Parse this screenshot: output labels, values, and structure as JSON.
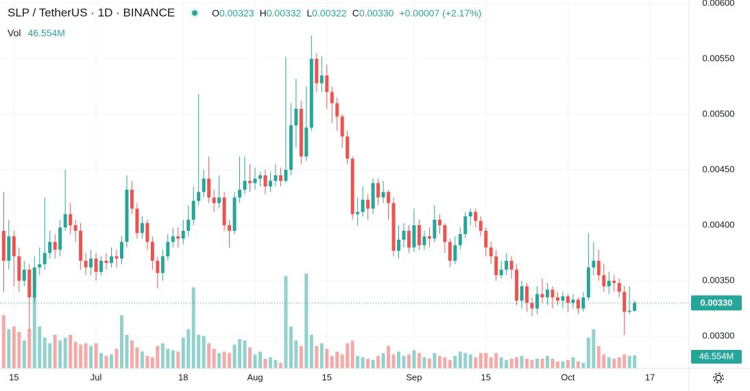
{
  "header": {
    "symbol": "SLP / TetherUS · 1D · BINANCE",
    "ohlc": [
      {
        "label": "O",
        "value": "0.00323"
      },
      {
        "label": "H",
        "value": "0.00332"
      },
      {
        "label": "L",
        "value": "0.00322"
      },
      {
        "label": "C",
        "value": "0.00330"
      }
    ],
    "change": "+0.00007 (+2.17%)",
    "vol_label": "Vol",
    "vol_value": "46.554M"
  },
  "chart_data": {
    "type": "candlestick",
    "up_color": "#26a69a",
    "down_color": "#ef5350",
    "volume_up_color": "rgba(38,166,154,0.5)",
    "volume_down_color": "rgba(239,83,80,0.5)",
    "xlim": [
      -0.72,
      133.6
    ],
    "xticks": [
      {
        "value": 2,
        "label": "15"
      },
      {
        "value": 18,
        "label": "Jul"
      },
      {
        "value": 35,
        "label": "18"
      },
      {
        "value": 49,
        "label": "Aug"
      },
      {
        "value": 63,
        "label": "15"
      },
      {
        "value": 80,
        "label": "Sep"
      },
      {
        "value": 94,
        "label": "15"
      },
      {
        "value": 110,
        "label": "Oct"
      },
      {
        "value": 126,
        "label": "17"
      }
    ],
    "ylim": [
      0.00271,
      0.00603
    ],
    "yticks": [
      {
        "value": 0.003,
        "label": "0.00300"
      },
      {
        "value": 0.0035,
        "label": "0.00350"
      },
      {
        "value": 0.004,
        "label": "0.00400"
      },
      {
        "value": 0.0045,
        "label": "0.00450"
      },
      {
        "value": 0.005,
        "label": "0.00500"
      },
      {
        "value": 0.0055,
        "label": "0.00550"
      },
      {
        "value": 0.006,
        "label": "0.00600"
      }
    ],
    "grid": true,
    "last_price": {
      "value": 0.0033,
      "label": "0.00330"
    },
    "volume_lim": [
      0,
      1318
    ],
    "volume_label": "46.554M",
    "open": [
      0.00395,
      0.00368,
      0.0039,
      0.00372,
      0.0035,
      0.0036,
      0.00335,
      0.00362,
      0.00365,
      0.00375,
      0.00385,
      0.00378,
      0.00398,
      0.0041,
      0.004,
      0.00395,
      0.00368,
      0.00362,
      0.0037,
      0.00358,
      0.00368,
      0.00366,
      0.00372,
      0.0037,
      0.00385,
      0.00432,
      0.00415,
      0.00393,
      0.00402,
      0.00385,
      0.00368,
      0.00357,
      0.00372,
      0.00385,
      0.0039,
      0.00388,
      0.00395,
      0.00405,
      0.00422,
      0.0043,
      0.00442,
      0.00425,
      0.0042,
      0.00425,
      0.004,
      0.00395,
      0.00425,
      0.00432,
      0.0044,
      0.00438,
      0.00442,
      0.00445,
      0.00435,
      0.0044,
      0.00445,
      0.0044,
      0.0045,
      0.0049,
      0.00505,
      0.00462,
      0.00488,
      0.0055,
      0.00528,
      0.00535,
      0.0052,
      0.0051,
      0.00498,
      0.0048,
      0.0046,
      0.0041,
      0.00412,
      0.00423,
      0.00415,
      0.00438,
      0.00425,
      0.0043,
      0.0042,
      0.00377,
      0.00387,
      0.00395,
      0.0038,
      0.004,
      0.00382,
      0.0039,
      0.00388,
      0.00405,
      0.004,
      0.00385,
      0.00368,
      0.00382,
      0.00392,
      0.00408,
      0.00412,
      0.00404,
      0.00395,
      0.0038,
      0.00372,
      0.00355,
      0.0036,
      0.00368,
      0.0036,
      0.00332,
      0.00345,
      0.0033,
      0.00325,
      0.00338,
      0.00335,
      0.00342,
      0.00335,
      0.00332,
      0.00336,
      0.0033,
      0.00333,
      0.00325,
      0.00335,
      0.00362,
      0.00368,
      0.00355,
      0.00345,
      0.0035,
      0.00348,
      0.0034,
      0.00322,
      0.00323
    ],
    "high": [
      0.0043,
      0.00405,
      0.00395,
      0.0038,
      0.00368,
      0.00365,
      0.00372,
      0.0038,
      0.00425,
      0.00395,
      0.00392,
      0.00405,
      0.0045,
      0.0042,
      0.00405,
      0.00402,
      0.00375,
      0.00378,
      0.00375,
      0.00372,
      0.00375,
      0.0038,
      0.00378,
      0.0039,
      0.00445,
      0.0044,
      0.0042,
      0.00408,
      0.00405,
      0.0039,
      0.00372,
      0.00378,
      0.00392,
      0.00398,
      0.00398,
      0.00405,
      0.00418,
      0.00435,
      0.00518,
      0.0045,
      0.00462,
      0.00432,
      0.00445,
      0.0043,
      0.00405,
      0.0043,
      0.00462,
      0.00462,
      0.00455,
      0.00452,
      0.00448,
      0.0045,
      0.00448,
      0.00455,
      0.00452,
      0.00552,
      0.0051,
      0.00532,
      0.00512,
      0.00525,
      0.00571,
      0.00555,
      0.00552,
      0.00545,
      0.00525,
      0.00515,
      0.005,
      0.00485,
      0.00462,
      0.00425,
      0.00435,
      0.00428,
      0.00442,
      0.00442,
      0.0044,
      0.00432,
      0.00425,
      0.004,
      0.00402,
      0.004,
      0.00415,
      0.00405,
      0.00395,
      0.00398,
      0.00418,
      0.0041,
      0.00402,
      0.00388,
      0.0039,
      0.00398,
      0.00412,
      0.00415,
      0.00415,
      0.00408,
      0.00398,
      0.00385,
      0.00378,
      0.00368,
      0.00375,
      0.00372,
      0.00365,
      0.0035,
      0.00348,
      0.00335,
      0.00345,
      0.00352,
      0.00348,
      0.00345,
      0.0034,
      0.0034,
      0.00338,
      0.00338,
      0.00335,
      0.0034,
      0.00393,
      0.00385,
      0.00378,
      0.00365,
      0.00358,
      0.00355,
      0.00352,
      0.00345,
      0.00345,
      0.00332
    ],
    "low": [
      0.0034,
      0.0036,
      0.00345,
      0.0034,
      0.00345,
      0.00305,
      0.0033,
      0.00355,
      0.0036,
      0.0037,
      0.0037,
      0.00372,
      0.00395,
      0.00392,
      0.00385,
      0.0036,
      0.00355,
      0.00355,
      0.0035,
      0.00355,
      0.0036,
      0.00362,
      0.00362,
      0.00365,
      0.0038,
      0.0041,
      0.00388,
      0.00388,
      0.00378,
      0.0036,
      0.00343,
      0.0035,
      0.00368,
      0.0038,
      0.0038,
      0.00383,
      0.0039,
      0.004,
      0.00418,
      0.00425,
      0.0042,
      0.00412,
      0.00415,
      0.00395,
      0.0038,
      0.00392,
      0.0042,
      0.00428,
      0.0043,
      0.00432,
      0.00435,
      0.00428,
      0.0043,
      0.00435,
      0.00435,
      0.00438,
      0.00445,
      0.0047,
      0.00455,
      0.00458,
      0.00485,
      0.0052,
      0.0052,
      0.00505,
      0.00492,
      0.00485,
      0.0047,
      0.00455,
      0.00405,
      0.004,
      0.00408,
      0.00405,
      0.0041,
      0.00418,
      0.0042,
      0.00405,
      0.00372,
      0.0037,
      0.0038,
      0.00375,
      0.00376,
      0.00378,
      0.00378,
      0.0038,
      0.00385,
      0.00392,
      0.00375,
      0.00362,
      0.00365,
      0.00378,
      0.00388,
      0.004,
      0.00398,
      0.0039,
      0.00372,
      0.00365,
      0.0035,
      0.00352,
      0.00355,
      0.00352,
      0.00328,
      0.00325,
      0.00322,
      0.00318,
      0.0032,
      0.0033,
      0.00328,
      0.00325,
      0.00328,
      0.00325,
      0.00322,
      0.00325,
      0.0032,
      0.00322,
      0.00332,
      0.00355,
      0.0035,
      0.0034,
      0.00338,
      0.0034,
      0.00335,
      0.00301,
      0.0032,
      0.00322
    ],
    "close": [
      0.00368,
      0.0039,
      0.00372,
      0.0035,
      0.0036,
      0.00335,
      0.00362,
      0.00365,
      0.00375,
      0.00385,
      0.00378,
      0.00398,
      0.0041,
      0.004,
      0.00395,
      0.00368,
      0.00362,
      0.0037,
      0.00358,
      0.00368,
      0.00366,
      0.00372,
      0.0037,
      0.00385,
      0.00432,
      0.00415,
      0.00393,
      0.00402,
      0.00385,
      0.00368,
      0.00357,
      0.00372,
      0.00385,
      0.0039,
      0.00388,
      0.00395,
      0.00405,
      0.00422,
      0.0043,
      0.00442,
      0.00425,
      0.0042,
      0.00425,
      0.004,
      0.00395,
      0.00425,
      0.00432,
      0.0044,
      0.00438,
      0.00442,
      0.00445,
      0.00435,
      0.0044,
      0.00445,
      0.0044,
      0.0045,
      0.0049,
      0.00505,
      0.00462,
      0.00488,
      0.0055,
      0.00528,
      0.00535,
      0.0052,
      0.0051,
      0.00498,
      0.0048,
      0.0046,
      0.0041,
      0.00412,
      0.00423,
      0.00415,
      0.00438,
      0.00425,
      0.0043,
      0.0042,
      0.00377,
      0.00387,
      0.00395,
      0.0038,
      0.004,
      0.00382,
      0.0039,
      0.00388,
      0.00405,
      0.004,
      0.00385,
      0.00368,
      0.00382,
      0.00392,
      0.00408,
      0.00412,
      0.00404,
      0.00395,
      0.0038,
      0.00372,
      0.00355,
      0.0036,
      0.00368,
      0.0036,
      0.00332,
      0.00345,
      0.0033,
      0.00325,
      0.00338,
      0.00335,
      0.00342,
      0.00335,
      0.00332,
      0.00336,
      0.0033,
      0.00333,
      0.00325,
      0.00335,
      0.00362,
      0.00368,
      0.00355,
      0.00345,
      0.0035,
      0.00348,
      0.0034,
      0.00322,
      0.00323,
      0.0033
    ],
    "volume": [
      190,
      140,
      150,
      130,
      100,
      140,
      260,
      150,
      110,
      90,
      120,
      100,
      110,
      120,
      95,
      85,
      90,
      80,
      90,
      55,
      45,
      50,
      70,
      190,
      120,
      100,
      75,
      60,
      45,
      40,
      80,
      90,
      70,
      65,
      60,
      110,
      140,
      290,
      120,
      115,
      90,
      70,
      55,
      60,
      55,
      85,
      105,
      100,
      75,
      50,
      60,
      35,
      40,
      30,
      20,
      330,
      150,
      100,
      80,
      340,
      120,
      80,
      90,
      70,
      45,
      60,
      50,
      90,
      100,
      45,
      40,
      35,
      30,
      45,
      55,
      80,
      50,
      60,
      45,
      50,
      65,
      55,
      40,
      35,
      55,
      45,
      40,
      30,
      45,
      60,
      55,
      50,
      40,
      55,
      55,
      40,
      55,
      40,
      30,
      35,
      40,
      45,
      35,
      30,
      35,
      35,
      45,
      35,
      25,
      25,
      30,
      40,
      25,
      20,
      110,
      140,
      80,
      50,
      40,
      35,
      40,
      50,
      45,
      46.554
    ]
  }
}
